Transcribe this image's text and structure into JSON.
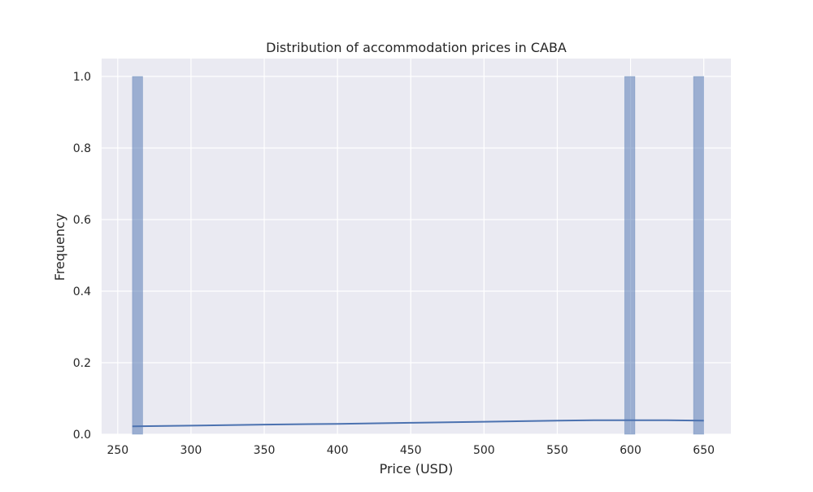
{
  "chart_data": {
    "type": "histogram",
    "title": "Distribution of accommodation prices in CABA",
    "xlabel": "Price (USD)",
    "ylabel": "Frequency",
    "xlim": [
      239,
      668.5
    ],
    "ylim": [
      0,
      1.05
    ],
    "x_ticks": [
      250,
      300,
      350,
      400,
      450,
      500,
      550,
      600,
      650
    ],
    "y_ticks": [
      0.0,
      0.2,
      0.4,
      0.6,
      0.8,
      1.0
    ],
    "y_tick_labels": [
      "0.0",
      "0.2",
      "0.4",
      "0.6",
      "0.8",
      "1.0"
    ],
    "grid": true,
    "bars": [
      {
        "x_start": 260,
        "x_end": 267,
        "count": 1
      },
      {
        "x_start": 596,
        "x_end": 603,
        "count": 1
      },
      {
        "x_start": 643,
        "x_end": 650,
        "count": 1
      }
    ],
    "kde": {
      "x": [
        260,
        300,
        350,
        400,
        450,
        500,
        550,
        575,
        600,
        625,
        650
      ],
      "y": [
        0.022,
        0.024,
        0.027,
        0.029,
        0.032,
        0.035,
        0.038,
        0.039,
        0.039,
        0.039,
        0.038
      ]
    },
    "colors": {
      "background": "#eaeaf2",
      "grid": "#ffffff",
      "bar_fill": "#4c72b0",
      "kde_line": "#4c72b0"
    }
  }
}
